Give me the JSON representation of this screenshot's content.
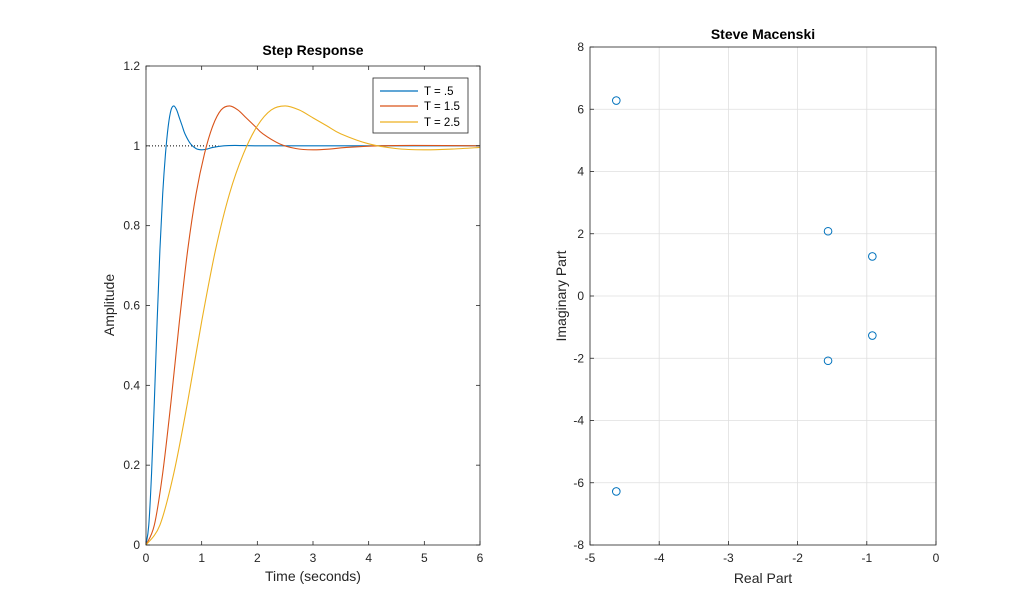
{
  "chart_data": [
    {
      "type": "line",
      "title": "Step Response",
      "xlabel": "Time (seconds)",
      "ylabel": "Amplitude",
      "xlim": [
        0,
        6
      ],
      "ylim": [
        0,
        1.2
      ],
      "xticks": [
        0,
        1,
        2,
        3,
        4,
        5,
        6
      ],
      "yticks": [
        0,
        0.2,
        0.4,
        0.6,
        0.8,
        1,
        1.2
      ],
      "xtick_labels": [
        "0",
        "1",
        "2",
        "3",
        "4",
        "5",
        "6"
      ],
      "ytick_labels": [
        "0",
        "0.2",
        "0.4",
        "0.6",
        "0.8",
        "1",
        "1.2"
      ],
      "grid": false,
      "legend_position": "top-right",
      "steady_state_reference": 1,
      "series": [
        {
          "name": "T = .5",
          "color": "#0072BD",
          "x": [
            0,
            0.05,
            0.1,
            0.15,
            0.2,
            0.25,
            0.3,
            0.35,
            0.4,
            0.45,
            0.5,
            0.55,
            0.6,
            0.65,
            0.7,
            0.8,
            0.9,
            1.0,
            1.1,
            1.2,
            1.4,
            1.6,
            2.0,
            3.0,
            6.0
          ],
          "y": [
            0,
            0.05,
            0.18,
            0.36,
            0.56,
            0.74,
            0.88,
            0.98,
            1.05,
            1.09,
            1.1,
            1.09,
            1.07,
            1.05,
            1.03,
            1.005,
            0.993,
            0.99,
            0.992,
            0.996,
            1.0,
            1.001,
            1.0,
            1.0,
            1.0
          ]
        },
        {
          "name": "T = 1.5",
          "color": "#D95319",
          "x": [
            0,
            0.15,
            0.3,
            0.45,
            0.6,
            0.75,
            0.9,
            1.05,
            1.2,
            1.35,
            1.5,
            1.65,
            1.8,
            1.95,
            2.1,
            2.4,
            2.7,
            3.0,
            3.3,
            3.6,
            4.2,
            4.8,
            6.0
          ],
          "y": [
            0,
            0.05,
            0.18,
            0.36,
            0.56,
            0.74,
            0.88,
            0.98,
            1.05,
            1.09,
            1.1,
            1.09,
            1.07,
            1.05,
            1.03,
            1.005,
            0.993,
            0.99,
            0.992,
            0.996,
            1.0,
            1.001,
            1.0
          ]
        },
        {
          "name": "T = 2.5",
          "color": "#EDB120",
          "x": [
            0,
            0.25,
            0.5,
            0.75,
            1.0,
            1.25,
            1.5,
            1.75,
            2.0,
            2.25,
            2.5,
            2.75,
            3.0,
            3.25,
            3.5,
            4.0,
            4.5,
            5.0,
            5.5,
            6.0
          ],
          "y": [
            0,
            0.05,
            0.18,
            0.36,
            0.56,
            0.74,
            0.88,
            0.98,
            1.05,
            1.09,
            1.1,
            1.09,
            1.07,
            1.05,
            1.03,
            1.005,
            0.993,
            0.99,
            0.992,
            0.996
          ]
        }
      ]
    },
    {
      "type": "scatter",
      "title": "Steve Macenski",
      "xlabel": "Real Part",
      "ylabel": "Imaginary Part",
      "xlim": [
        -5,
        0
      ],
      "ylim": [
        -8,
        8
      ],
      "xticks": [
        -5,
        -4,
        -3,
        -2,
        -1,
        0
      ],
      "yticks": [
        -8,
        -6,
        -4,
        -2,
        0,
        2,
        4,
        6,
        8
      ],
      "xtick_labels": [
        "-5",
        "-4",
        "-3",
        "-2",
        "-1",
        "0"
      ],
      "ytick_labels": [
        "-8",
        "-6",
        "-4",
        "-2",
        "0",
        "2",
        "4",
        "6",
        "8"
      ],
      "grid": true,
      "marker": "circle",
      "color": "#0072BD",
      "points": [
        {
          "x": -4.62,
          "y": 6.28
        },
        {
          "x": -4.62,
          "y": -6.28
        },
        {
          "x": -1.56,
          "y": 2.08
        },
        {
          "x": -1.56,
          "y": -2.08
        },
        {
          "x": -0.92,
          "y": 1.27
        },
        {
          "x": -0.92,
          "y": -1.27
        }
      ]
    }
  ]
}
